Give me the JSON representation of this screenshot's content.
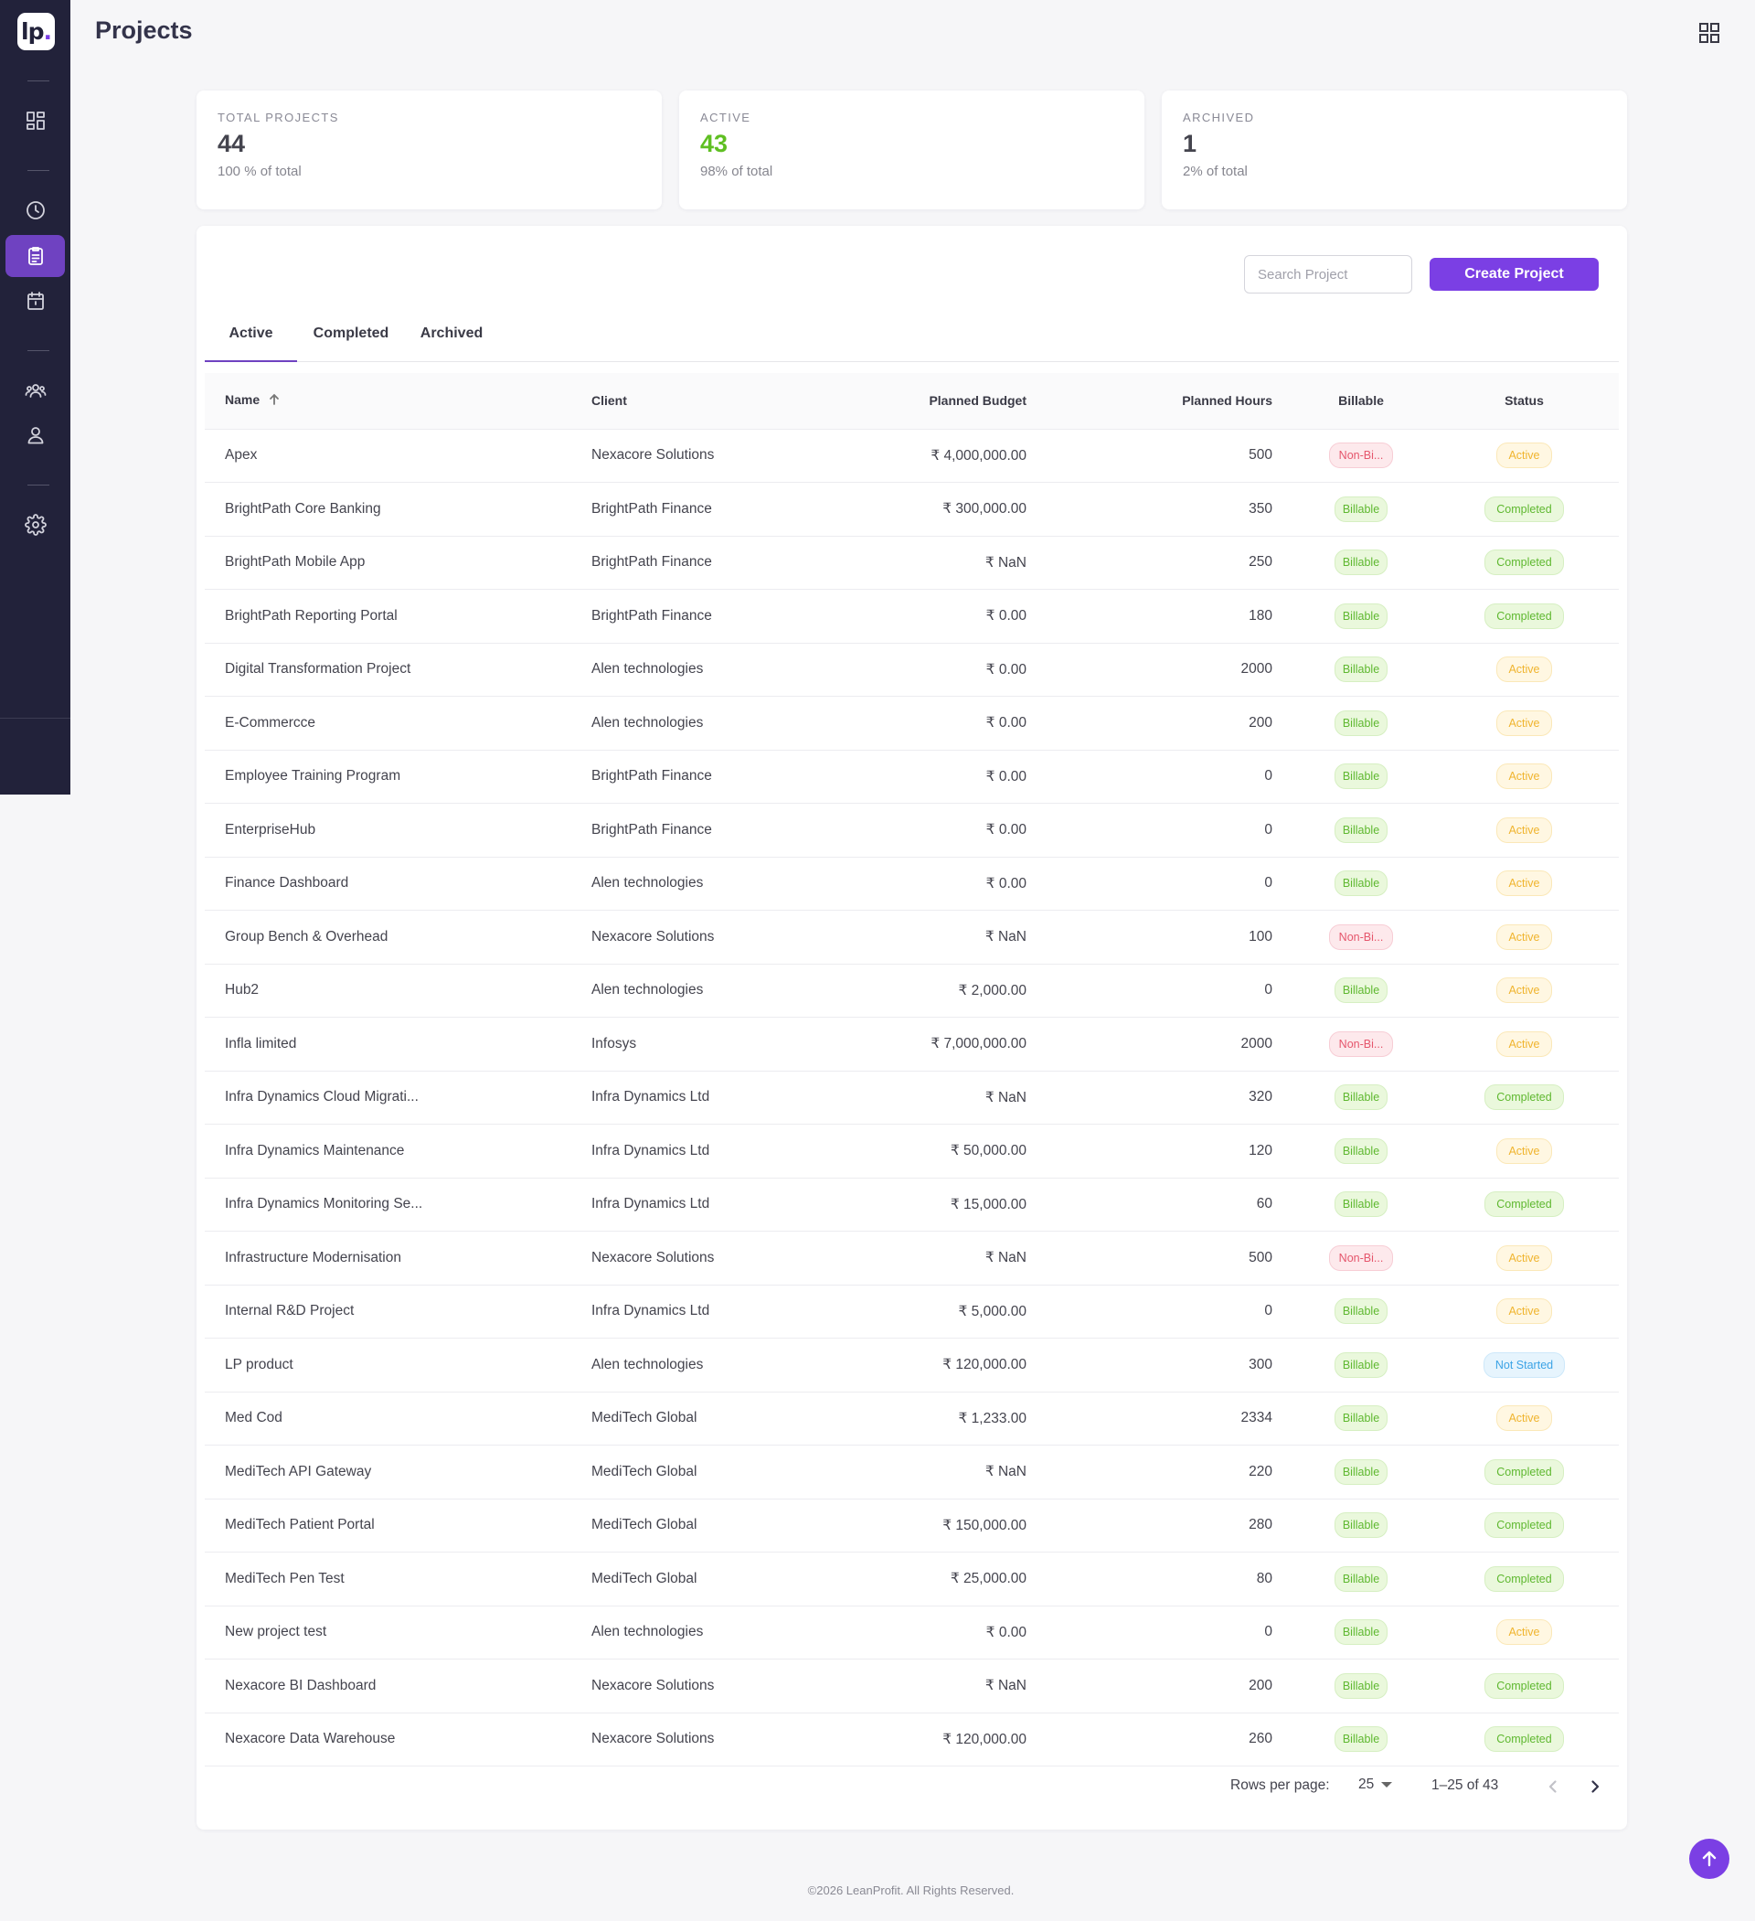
{
  "app": {
    "logo_text": "lp",
    "page_title": "Projects"
  },
  "colors": {
    "accent": "#7b3fe4",
    "sidebar": "#22223a",
    "active_green": "#5fbf22"
  },
  "sidebar": {
    "items": [
      {
        "name": "dashboard",
        "icon": "dashboard-icon"
      },
      {
        "name": "timesheet",
        "icon": "clock-icon"
      },
      {
        "name": "projects",
        "icon": "clipboard-icon",
        "active": true
      },
      {
        "name": "calendar",
        "icon": "calendar-icon"
      },
      {
        "name": "teams",
        "icon": "users-icon"
      },
      {
        "name": "profile",
        "icon": "user-icon"
      },
      {
        "name": "settings",
        "icon": "gear-icon"
      }
    ]
  },
  "stats": [
    {
      "label": "TOTAL PROJECTS",
      "value": "44",
      "sub": "100 % of total"
    },
    {
      "label": "ACTIVE",
      "value": "43",
      "sub": "98% of total"
    },
    {
      "label": "ARCHIVED",
      "value": "1",
      "sub": "2% of total"
    }
  ],
  "search": {
    "placeholder": "Search Project"
  },
  "create_button": "Create Project",
  "tabs": [
    "Active",
    "Completed",
    "Archived"
  ],
  "table": {
    "headers": [
      "Name",
      "Client",
      "Planned Budget",
      "Planned Hours",
      "Billable",
      "Status"
    ],
    "rows": [
      [
        "Apex",
        "Nexacore Solutions",
        "₹ 4,000,000.00",
        "500",
        "Non-Bi...",
        "Active"
      ],
      [
        "BrightPath Core Banking",
        "BrightPath Finance",
        "₹ 300,000.00",
        "350",
        "Billable",
        "Completed"
      ],
      [
        "BrightPath Mobile App",
        "BrightPath Finance",
        "₹ NaN",
        "250",
        "Billable",
        "Completed"
      ],
      [
        "BrightPath Reporting Portal",
        "BrightPath Finance",
        "₹ 0.00",
        "180",
        "Billable",
        "Completed"
      ],
      [
        "Digital Transformation Project",
        "Alen technologies",
        "₹ 0.00",
        "2000",
        "Billable",
        "Active"
      ],
      [
        "E-Commercce",
        "Alen technologies",
        "₹ 0.00",
        "200",
        "Billable",
        "Active"
      ],
      [
        "Employee Training Program",
        "BrightPath Finance",
        "₹ 0.00",
        "0",
        "Billable",
        "Active"
      ],
      [
        "EnterpriseHub",
        "BrightPath Finance",
        "₹ 0.00",
        "0",
        "Billable",
        "Active"
      ],
      [
        "Finance Dashboard",
        "Alen technologies",
        "₹ 0.00",
        "0",
        "Billable",
        "Active"
      ],
      [
        "Group Bench & Overhead",
        "Nexacore Solutions",
        "₹ NaN",
        "100",
        "Non-Bi...",
        "Active"
      ],
      [
        "Hub2",
        "Alen technologies",
        "₹ 2,000.00",
        "0",
        "Billable",
        "Active"
      ],
      [
        "Infla limited",
        "Infosys",
        "₹ 7,000,000.00",
        "2000",
        "Non-Bi...",
        "Active"
      ],
      [
        "Infra Dynamics Cloud Migrati...",
        "Infra Dynamics Ltd",
        "₹ NaN",
        "320",
        "Billable",
        "Completed"
      ],
      [
        "Infra Dynamics Maintenance",
        "Infra Dynamics Ltd",
        "₹ 50,000.00",
        "120",
        "Billable",
        "Active"
      ],
      [
        "Infra Dynamics Monitoring Se...",
        "Infra Dynamics Ltd",
        "₹ 15,000.00",
        "60",
        "Billable",
        "Completed"
      ],
      [
        "Infrastructure Modernisation",
        "Nexacore Solutions",
        "₹ NaN",
        "500",
        "Non-Bi...",
        "Active"
      ],
      [
        "Internal R&D Project",
        "Infra Dynamics Ltd",
        "₹ 5,000.00",
        "0",
        "Billable",
        "Active"
      ],
      [
        "LP product",
        "Alen technologies",
        "₹ 120,000.00",
        "300",
        "Billable",
        "Not Started"
      ],
      [
        "Med Cod",
        "MediTech Global",
        "₹ 1,233.00",
        "2334",
        "Billable",
        "Active"
      ],
      [
        "MediTech API Gateway",
        "MediTech Global",
        "₹ NaN",
        "220",
        "Billable",
        "Completed"
      ],
      [
        "MediTech Patient Portal",
        "MediTech Global",
        "₹ 150,000.00",
        "280",
        "Billable",
        "Completed"
      ],
      [
        "MediTech Pen Test",
        "MediTech Global",
        "₹ 25,000.00",
        "80",
        "Billable",
        "Completed"
      ],
      [
        "New project test",
        "Alen technologies",
        "₹ 0.00",
        "0",
        "Billable",
        "Active"
      ],
      [
        "Nexacore BI Dashboard",
        "Nexacore Solutions",
        "₹ NaN",
        "200",
        "Billable",
        "Completed"
      ],
      [
        "Nexacore Data Warehouse",
        "Nexacore Solutions",
        "₹ 120,000.00",
        "260",
        "Billable",
        "Completed"
      ]
    ]
  },
  "pagination": {
    "rows_label": "Rows per page:",
    "rows_value": "25",
    "range": "1–25 of 43"
  },
  "footer": "©2026 LeanProfit. All Rights Reserved."
}
